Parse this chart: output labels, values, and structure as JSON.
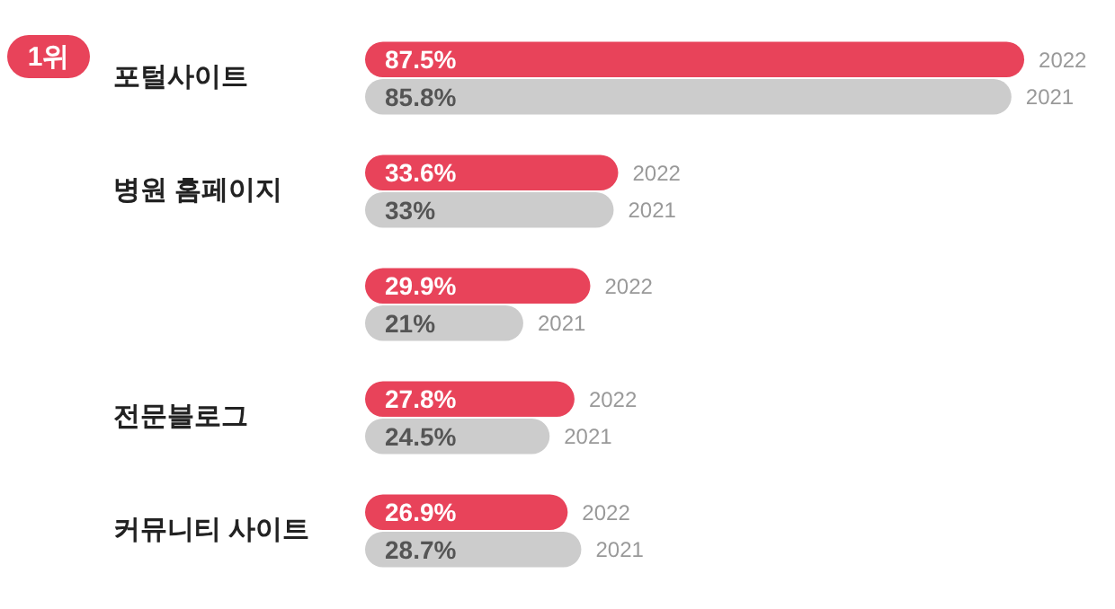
{
  "chart_data": {
    "type": "bar",
    "orientation": "horizontal",
    "categories": [
      "포털사이트",
      "병원 홈페이지",
      null,
      "전문블로그",
      "커뮤니티 사이트"
    ],
    "series": [
      {
        "name": "2022",
        "color": "#e8435a",
        "values": [
          87.5,
          33.6,
          29.9,
          27.8,
          26.9
        ],
        "value_labels": [
          "87.5%",
          "33.6%",
          "29.9%",
          "27.8%",
          "26.9%"
        ]
      },
      {
        "name": "2021",
        "color": "#cccccc",
        "values": [
          85.8,
          33,
          21,
          24.5,
          28.7
        ],
        "value_labels": [
          "85.8%",
          "33%",
          "21%",
          "24.5%",
          "28.7%"
        ]
      }
    ],
    "tick_labels": "y",
    "legend": false,
    "annotations": [
      "1위"
    ]
  }
}
